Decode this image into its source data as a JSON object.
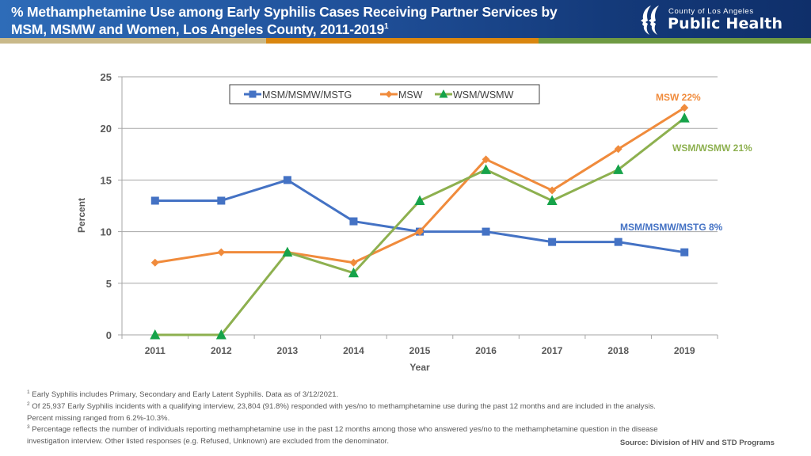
{
  "header": {
    "title_line1": "% Methamphetamine Use among Early Syphilis Cases Receiving Partner Services by",
    "title_line2": "MSM, MSMW and Women, Los Angeles County, 2011-2019",
    "title_superscript": "1",
    "logo_county": "County of Los Angeles",
    "logo_name": "Public Health",
    "stripe_colors": [
      "#c9b98a",
      "#d9860f",
      "#6f9a43"
    ]
  },
  "chart_data": {
    "type": "line",
    "title": "% Methamphetamine Use among Early Syphilis Cases Receiving Partner Services by MSM, MSMW and Women, Los Angeles County, 2011-2019",
    "xlabel": "Year",
    "ylabel": "Percent",
    "x": [
      "2011",
      "2012",
      "2013",
      "2014",
      "2015",
      "2016",
      "2017",
      "2018",
      "2019"
    ],
    "ylim": [
      0,
      25
    ],
    "yticks": [
      "0",
      "5",
      "10",
      "15",
      "20",
      "25"
    ],
    "grid": true,
    "legend_position": "top-center",
    "series": [
      {
        "name": "MSM/MSMW/MSTG",
        "color": "#4472c4",
        "marker": "square",
        "values": [
          13,
          13,
          15,
          11,
          10,
          10,
          9,
          9,
          8
        ],
        "end_label": "MSM/MSMW/MSTG 8%"
      },
      {
        "name": "MSW",
        "color": "#f08b3c",
        "marker": "diamond",
        "values": [
          7,
          8,
          8,
          7,
          10,
          17,
          14,
          18,
          22
        ],
        "end_label": "MSW  22%"
      },
      {
        "name": "WSM/WSMW",
        "color": "#8db04f",
        "marker": "triangle",
        "marker_color": "#16a34a",
        "values": [
          0,
          0,
          8,
          6,
          13,
          16,
          13,
          16,
          21
        ],
        "end_label": "WSM/WSMW 21%"
      }
    ]
  },
  "footnotes": {
    "items": [
      {
        "sup": "1",
        "text": " Early Syphilis includes Primary, Secondary and Early Latent Syphilis. Data as of 3/12/2021."
      },
      {
        "sup": "2",
        "text": " Of 25,937 Early Syphilis incidents with a qualifying interview, 23,804 (91.8%) responded with yes/no to methamphetamine use during the past 12 months and are included in the analysis."
      },
      {
        "sup": "",
        "text": "Percent missing ranged from 6.2%-10.3%."
      },
      {
        "sup": "3",
        "text": " Percentage reflects the number of individuals reporting methamphetamine use in the past 12 months among those who answered yes/no to the methamphetamine question in the disease"
      },
      {
        "sup": "",
        "text": "investigation interview. Other listed responses (e.g. Refused, Unknown) are excluded from the denominator."
      }
    ],
    "source": "Source: Division of HIV and STD Programs"
  }
}
